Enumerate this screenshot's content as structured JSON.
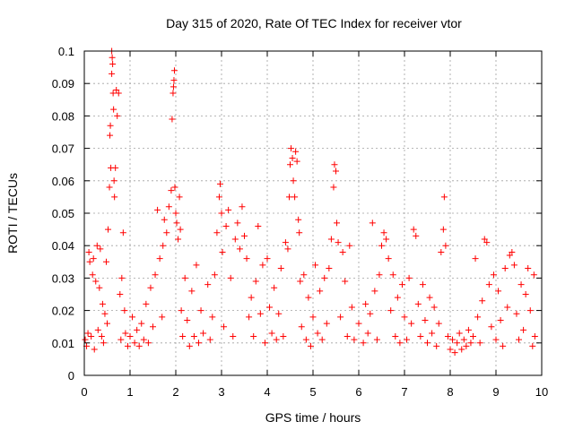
{
  "chart_data": {
    "type": "scatter",
    "title": "Day 315 of 2020, Rate Of TEC Index for receiver vtor",
    "xlabel": "GPS time / hours",
    "ylabel": "ROTI / TECUs",
    "xlim": [
      0,
      10
    ],
    "ylim": [
      0,
      0.1
    ],
    "xticks": [
      "0",
      "1",
      "2",
      "3",
      "4",
      "5",
      "6",
      "7",
      "8",
      "9",
      "10"
    ],
    "yticks": [
      "0",
      "0.01",
      "0.02",
      "0.03",
      "0.04",
      "0.05",
      "0.06",
      "0.07",
      "0.08",
      "0.09",
      "0.1"
    ],
    "grid": true,
    "marker": "+",
    "color": "#ff0000",
    "series": [
      {
        "points": [
          [
            0.02,
            0.011
          ],
          [
            0.05,
            0.009
          ],
          [
            0.08,
            0.013
          ],
          [
            0.1,
            0.038
          ],
          [
            0.12,
            0.035
          ],
          [
            0.15,
            0.012
          ],
          [
            0.18,
            0.031
          ],
          [
            0.2,
            0.036
          ],
          [
            0.22,
            0.008
          ],
          [
            0.25,
            0.029
          ],
          [
            0.28,
            0.04
          ],
          [
            0.3,
            0.014
          ],
          [
            0.33,
            0.027
          ],
          [
            0.35,
            0.039
          ],
          [
            0.38,
            0.012
          ],
          [
            0.4,
            0.022
          ],
          [
            0.42,
            0.01
          ],
          [
            0.45,
            0.019
          ],
          [
            0.48,
            0.035
          ],
          [
            0.5,
            0.016
          ],
          [
            0.52,
            0.045
          ],
          [
            0.55,
            0.058
          ],
          [
            0.56,
            0.074
          ],
          [
            0.57,
            0.077
          ],
          [
            0.58,
            0.064
          ],
          [
            0.6,
            0.093
          ],
          [
            0.6,
            0.1
          ],
          [
            0.61,
            0.098
          ],
          [
            0.62,
            0.096
          ],
          [
            0.63,
            0.087
          ],
          [
            0.64,
            0.082
          ],
          [
            0.65,
            0.06
          ],
          [
            0.66,
            0.055
          ],
          [
            0.68,
            0.064
          ],
          [
            0.7,
            0.088
          ],
          [
            0.72,
            0.08
          ],
          [
            0.75,
            0.087
          ],
          [
            0.78,
            0.025
          ],
          [
            0.8,
            0.011
          ],
          [
            0.82,
            0.03
          ],
          [
            0.85,
            0.044
          ],
          [
            0.88,
            0.02
          ],
          [
            0.9,
            0.013
          ],
          [
            0.95,
            0.009
          ],
          [
            1.0,
            0.012
          ],
          [
            1.05,
            0.018
          ],
          [
            1.1,
            0.01
          ],
          [
            1.15,
            0.014
          ],
          [
            1.2,
            0.009
          ],
          [
            1.25,
            0.016
          ],
          [
            1.3,
            0.011
          ],
          [
            1.35,
            0.022
          ],
          [
            1.4,
            0.01
          ],
          [
            1.45,
            0.027
          ],
          [
            1.5,
            0.015
          ],
          [
            1.55,
            0.031
          ],
          [
            1.6,
            0.051
          ],
          [
            1.65,
            0.036
          ],
          [
            1.7,
            0.018
          ],
          [
            1.72,
            0.04
          ],
          [
            1.75,
            0.048
          ],
          [
            1.8,
            0.044
          ],
          [
            1.85,
            0.052
          ],
          [
            1.9,
            0.057
          ],
          [
            1.92,
            0.079
          ],
          [
            1.94,
            0.087
          ],
          [
            1.95,
            0.089
          ],
          [
            1.96,
            0.091
          ],
          [
            1.97,
            0.094
          ],
          [
            1.98,
            0.058
          ],
          [
            2.0,
            0.05
          ],
          [
            2.02,
            0.047
          ],
          [
            2.05,
            0.042
          ],
          [
            2.08,
            0.055
          ],
          [
            2.1,
            0.045
          ],
          [
            2.12,
            0.02
          ],
          [
            2.15,
            0.012
          ],
          [
            2.2,
            0.03
          ],
          [
            2.25,
            0.017
          ],
          [
            2.3,
            0.009
          ],
          [
            2.35,
            0.026
          ],
          [
            2.4,
            0.012
          ],
          [
            2.45,
            0.034
          ],
          [
            2.5,
            0.01
          ],
          [
            2.55,
            0.02
          ],
          [
            2.6,
            0.013
          ],
          [
            2.7,
            0.028
          ],
          [
            2.75,
            0.011
          ],
          [
            2.8,
            0.018
          ],
          [
            2.85,
            0.031
          ],
          [
            2.9,
            0.044
          ],
          [
            2.95,
            0.055
          ],
          [
            2.97,
            0.059
          ],
          [
            3.0,
            0.05
          ],
          [
            3.02,
            0.038
          ],
          [
            3.05,
            0.015
          ],
          [
            3.1,
            0.046
          ],
          [
            3.15,
            0.051
          ],
          [
            3.2,
            0.03
          ],
          [
            3.25,
            0.012
          ],
          [
            3.3,
            0.042
          ],
          [
            3.35,
            0.047
          ],
          [
            3.4,
            0.039
          ],
          [
            3.45,
            0.052
          ],
          [
            3.5,
            0.043
          ],
          [
            3.55,
            0.036
          ],
          [
            3.6,
            0.018
          ],
          [
            3.65,
            0.024
          ],
          [
            3.7,
            0.012
          ],
          [
            3.75,
            0.029
          ],
          [
            3.8,
            0.046
          ],
          [
            3.85,
            0.019
          ],
          [
            3.9,
            0.034
          ],
          [
            3.95,
            0.01
          ],
          [
            4.0,
            0.036
          ],
          [
            4.05,
            0.021
          ],
          [
            4.1,
            0.013
          ],
          [
            4.15,
            0.027
          ],
          [
            4.2,
            0.011
          ],
          [
            4.25,
            0.019
          ],
          [
            4.3,
            0.033
          ],
          [
            4.35,
            0.012
          ],
          [
            4.4,
            0.041
          ],
          [
            4.45,
            0.039
          ],
          [
            4.48,
            0.055
          ],
          [
            4.5,
            0.065
          ],
          [
            4.52,
            0.07
          ],
          [
            4.55,
            0.067
          ],
          [
            4.57,
            0.06
          ],
          [
            4.6,
            0.055
          ],
          [
            4.62,
            0.069
          ],
          [
            4.65,
            0.066
          ],
          [
            4.68,
            0.048
          ],
          [
            4.7,
            0.044
          ],
          [
            4.72,
            0.029
          ],
          [
            4.75,
            0.015
          ],
          [
            4.8,
            0.031
          ],
          [
            4.85,
            0.011
          ],
          [
            4.9,
            0.024
          ],
          [
            4.95,
            0.009
          ],
          [
            5.0,
            0.018
          ],
          [
            5.05,
            0.034
          ],
          [
            5.1,
            0.013
          ],
          [
            5.15,
            0.026
          ],
          [
            5.2,
            0.011
          ],
          [
            5.25,
            0.03
          ],
          [
            5.3,
            0.016
          ],
          [
            5.35,
            0.033
          ],
          [
            5.4,
            0.042
          ],
          [
            5.45,
            0.058
          ],
          [
            5.47,
            0.065
          ],
          [
            5.5,
            0.063
          ],
          [
            5.52,
            0.047
          ],
          [
            5.55,
            0.041
          ],
          [
            5.6,
            0.018
          ],
          [
            5.65,
            0.038
          ],
          [
            5.7,
            0.029
          ],
          [
            5.75,
            0.012
          ],
          [
            5.8,
            0.04
          ],
          [
            5.85,
            0.021
          ],
          [
            5.9,
            0.011
          ],
          [
            6.0,
            0.016
          ],
          [
            6.1,
            0.01
          ],
          [
            6.15,
            0.022
          ],
          [
            6.2,
            0.013
          ],
          [
            6.25,
            0.019
          ],
          [
            6.3,
            0.047
          ],
          [
            6.35,
            0.026
          ],
          [
            6.4,
            0.011
          ],
          [
            6.45,
            0.031
          ],
          [
            6.5,
            0.04
          ],
          [
            6.55,
            0.044
          ],
          [
            6.6,
            0.042
          ],
          [
            6.65,
            0.036
          ],
          [
            6.7,
            0.02
          ],
          [
            6.75,
            0.031
          ],
          [
            6.8,
            0.012
          ],
          [
            6.85,
            0.024
          ],
          [
            6.9,
            0.01
          ],
          [
            6.95,
            0.028
          ],
          [
            7.0,
            0.018
          ],
          [
            7.05,
            0.011
          ],
          [
            7.1,
            0.03
          ],
          [
            7.15,
            0.016
          ],
          [
            7.2,
            0.045
          ],
          [
            7.25,
            0.043
          ],
          [
            7.3,
            0.022
          ],
          [
            7.35,
            0.012
          ],
          [
            7.4,
            0.028
          ],
          [
            7.45,
            0.017
          ],
          [
            7.5,
            0.01
          ],
          [
            7.55,
            0.024
          ],
          [
            7.6,
            0.013
          ],
          [
            7.65,
            0.021
          ],
          [
            7.7,
            0.009
          ],
          [
            7.75,
            0.016
          ],
          [
            7.8,
            0.038
          ],
          [
            7.85,
            0.045
          ],
          [
            7.87,
            0.055
          ],
          [
            7.9,
            0.04
          ],
          [
            7.95,
            0.012
          ],
          [
            8.0,
            0.008
          ],
          [
            8.05,
            0.011
          ],
          [
            8.1,
            0.007
          ],
          [
            8.15,
            0.01
          ],
          [
            8.2,
            0.013
          ],
          [
            8.25,
            0.008
          ],
          [
            8.3,
            0.011
          ],
          [
            8.35,
            0.009
          ],
          [
            8.4,
            0.014
          ],
          [
            8.45,
            0.01
          ],
          [
            8.5,
            0.012
          ],
          [
            8.55,
            0.036
          ],
          [
            8.6,
            0.018
          ],
          [
            8.65,
            0.01
          ],
          [
            8.7,
            0.023
          ],
          [
            8.75,
            0.042
          ],
          [
            8.8,
            0.041
          ],
          [
            8.85,
            0.028
          ],
          [
            8.9,
            0.015
          ],
          [
            8.95,
            0.031
          ],
          [
            9.0,
            0.011
          ],
          [
            9.05,
            0.026
          ],
          [
            9.1,
            0.017
          ],
          [
            9.15,
            0.009
          ],
          [
            9.2,
            0.033
          ],
          [
            9.25,
            0.021
          ],
          [
            9.3,
            0.037
          ],
          [
            9.35,
            0.038
          ],
          [
            9.4,
            0.034
          ],
          [
            9.45,
            0.019
          ],
          [
            9.5,
            0.011
          ],
          [
            9.55,
            0.028
          ],
          [
            9.6,
            0.014
          ],
          [
            9.65,
            0.025
          ],
          [
            9.7,
            0.033
          ],
          [
            9.75,
            0.02
          ],
          [
            9.8,
            0.009
          ],
          [
            9.83,
            0.031
          ],
          [
            9.85,
            0.012
          ]
        ]
      }
    ]
  }
}
